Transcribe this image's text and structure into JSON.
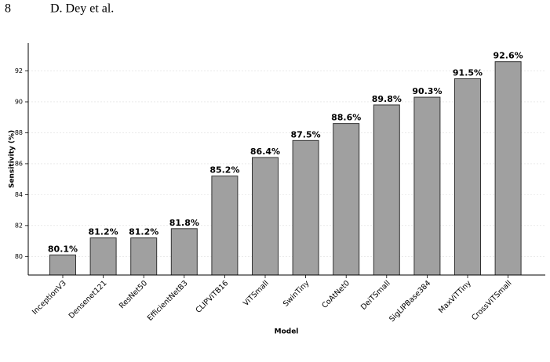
{
  "header": {
    "page": "8",
    "running_title": "D. Dey et al."
  },
  "chart_data": {
    "type": "bar",
    "x_label": "Model",
    "y_label": "Sensitivity (%)",
    "categories": [
      "InceptionV3",
      "Densenet121",
      "ResNet50",
      "EfficientNetB3",
      "CLIPViTB16",
      "ViTSmall",
      "SwinTiny",
      "CoAtNet0",
      "DeiTSmall",
      "SigLIPBase384",
      "MaxViTTiny",
      "CrossViTSmall"
    ],
    "values": [
      80.1,
      81.2,
      81.2,
      81.8,
      85.2,
      86.4,
      87.5,
      88.6,
      89.8,
      90.3,
      91.5,
      92.6
    ],
    "value_labels": [
      "80.1%",
      "81.2%",
      "81.2%",
      "81.8%",
      "85.2%",
      "86.4%",
      "87.5%",
      "88.6%",
      "89.8%",
      "90.3%",
      "91.5%",
      "92.6%"
    ],
    "color": "#a0a0a0",
    "ylim": [
      78.8,
      93.8
    ],
    "yticks": [
      80,
      82,
      84,
      86,
      88,
      90,
      92
    ],
    "grid": true
  }
}
